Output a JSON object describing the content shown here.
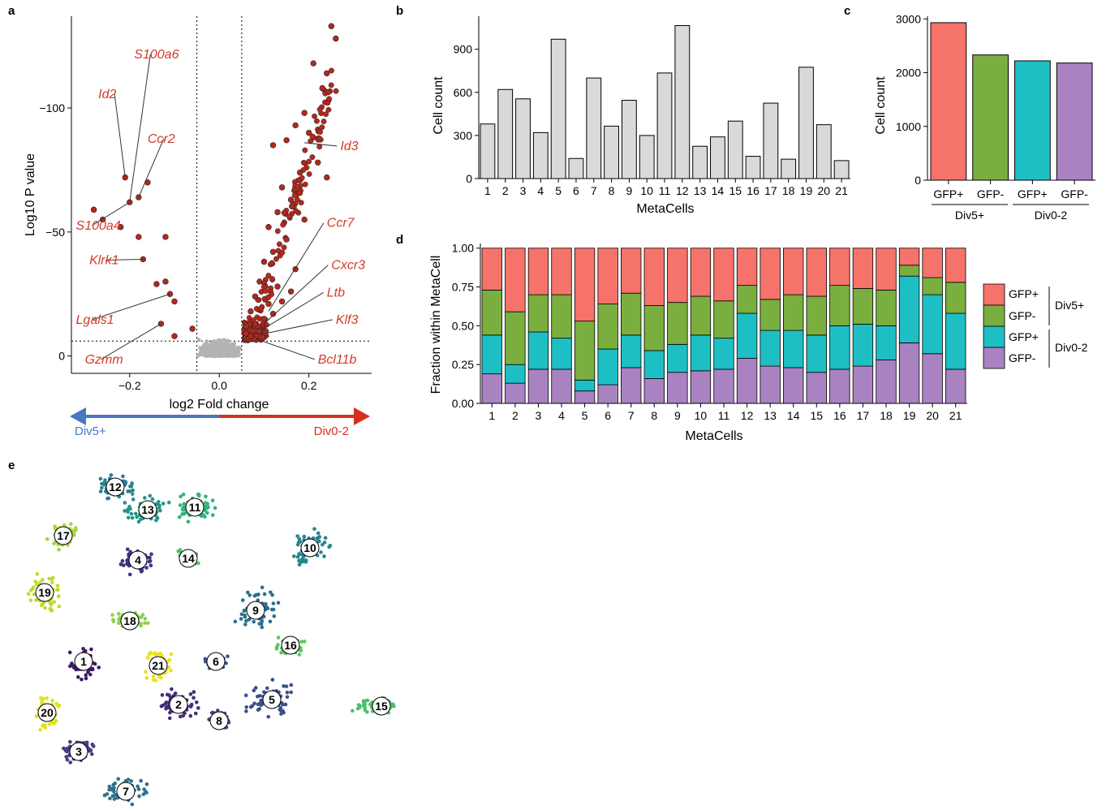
{
  "panel_letters": {
    "a": "a",
    "b": "b",
    "c": "c",
    "d": "d",
    "e": "e"
  },
  "colors": {
    "gene_label": "#d33a2a",
    "up_points": "#b5281e",
    "ns_points": "#b3b3b3",
    "bar_gray": "#d9d9d9",
    "div5_arrow": "#4a77c2",
    "div02_arrow": "#d7301f",
    "gfp_pos_div5": "#f5736b",
    "gfp_neg_div5": "#7aae3f",
    "gfp_pos_div02": "#1ebfc4",
    "gfp_neg_div02": "#a982c2"
  },
  "chart_data": [
    {
      "id": "a",
      "type": "scatter",
      "xlabel": "log2 Fold change",
      "ylabel": "Log10 P value",
      "xlim": [
        -0.33,
        0.34
      ],
      "ylim": [
        7,
        -137
      ],
      "xticks": [
        "−0.2",
        "0.0",
        "0.2"
      ],
      "xtick_values": [
        -0.2,
        0.0,
        0.2
      ],
      "yticks": [
        "−100",
        "−50",
        "0"
      ],
      "ytick_values": [
        -100,
        -50,
        0
      ],
      "thresholds": {
        "x": [
          -0.05,
          0.05
        ],
        "y": -6
      },
      "direction_arrow": {
        "left": "Div5+",
        "right": "Div0-2"
      },
      "highlighted": [
        {
          "x": 0.12,
          "y": -85
        },
        {
          "x": 0.23,
          "y": -108
        },
        {
          "x": 0.25,
          "y": -133
        },
        {
          "x": 0.26,
          "y": -128
        },
        {
          "x": 0.21,
          "y": -118
        },
        {
          "x": 0.24,
          "y": -114
        },
        {
          "x": 0.19,
          "y": -98
        },
        {
          "x": 0.17,
          "y": -93
        },
        {
          "x": 0.15,
          "y": -87
        },
        {
          "x": 0.2,
          "y": -90
        },
        {
          "x": 0.22,
          "y": -78
        },
        {
          "x": 0.24,
          "y": -72
        },
        {
          "x": 0.18,
          "y": -74
        },
        {
          "x": 0.14,
          "y": -68
        },
        {
          "x": 0.16,
          "y": -63
        },
        {
          "x": 0.13,
          "y": -58
        },
        {
          "x": 0.11,
          "y": -52
        },
        {
          "x": 0.19,
          "y": -55
        },
        {
          "x": 0.15,
          "y": -47
        },
        {
          "x": 0.12,
          "y": -42
        },
        {
          "x": 0.1,
          "y": -38
        },
        {
          "x": 0.17,
          "y": -35
        },
        {
          "x": 0.09,
          "y": -30
        },
        {
          "x": 0.13,
          "y": -28
        },
        {
          "x": 0.08,
          "y": -24
        },
        {
          "x": 0.11,
          "y": -21
        },
        {
          "x": 0.07,
          "y": -18
        },
        {
          "x": 0.1,
          "y": -15
        },
        {
          "x": 0.06,
          "y": -12
        },
        {
          "x": 0.09,
          "y": -10
        },
        {
          "x": 0.07,
          "y": -8
        },
        {
          "x": 0.08,
          "y": -13
        },
        {
          "x": 0.12,
          "y": -17
        },
        {
          "x": 0.14,
          "y": -22
        },
        {
          "x": 0.16,
          "y": -26
        },
        {
          "x": 0.06,
          "y": -9
        },
        {
          "x": -0.21,
          "y": -72
        },
        {
          "x": -0.2,
          "y": -62
        },
        {
          "x": -0.18,
          "y": -64
        },
        {
          "x": -0.16,
          "y": -70
        },
        {
          "x": -0.28,
          "y": -59
        },
        {
          "x": -0.17,
          "y": -39
        },
        {
          "x": -0.12,
          "y": -48
        },
        {
          "x": -0.18,
          "y": -48
        },
        {
          "x": -0.12,
          "y": -30
        },
        {
          "x": -0.11,
          "y": -25
        },
        {
          "x": -0.13,
          "y": -13
        },
        {
          "x": -0.14,
          "y": -29
        },
        {
          "x": -0.06,
          "y": -11
        },
        {
          "x": -0.1,
          "y": -22
        },
        {
          "x": -0.26,
          "y": -55
        },
        {
          "x": -0.22,
          "y": -52
        },
        {
          "x": -0.1,
          "y": -8
        }
      ],
      "gene_labels": [
        {
          "text": "Id2",
          "x": -0.27,
          "y": -104,
          "px": -0.21,
          "py": -72
        },
        {
          "text": "S100a6",
          "x": -0.19,
          "y": -120,
          "px": -0.2,
          "py": -62
        },
        {
          "text": "Ccr2",
          "x": -0.16,
          "y": -86,
          "px": -0.18,
          "py": -64
        },
        {
          "text": "S100a4",
          "x": -0.32,
          "y": -51,
          "px": -0.2,
          "py": -62
        },
        {
          "text": "Klrk1",
          "x": -0.29,
          "y": -37,
          "px": -0.17,
          "py": -39
        },
        {
          "text": "Lgals1",
          "x": -0.32,
          "y": -13,
          "px": -0.11,
          "py": -25
        },
        {
          "text": "Gzmm",
          "x": -0.3,
          "y": 3,
          "px": -0.13,
          "py": -13
        },
        {
          "text": "Id3",
          "x": 0.27,
          "y": -83,
          "px": 0.19,
          "py": -86
        },
        {
          "text": "Ccr7",
          "x": 0.24,
          "y": -52,
          "px": 0.11,
          "py": -18
        },
        {
          "text": "Cxcr3",
          "x": 0.25,
          "y": -35,
          "px": 0.1,
          "py": -13
        },
        {
          "text": "Ltb",
          "x": 0.24,
          "y": -24,
          "px": 0.09,
          "py": -10
        },
        {
          "text": "Klf3",
          "x": 0.26,
          "y": -13,
          "px": 0.1,
          "py": -9
        },
        {
          "text": "Bcl11b",
          "x": 0.22,
          "y": 3,
          "px": 0.08,
          "py": -7
        }
      ]
    },
    {
      "id": "b",
      "type": "bar",
      "xlabel": "MetaCells",
      "ylabel": "Cell count",
      "ylim": [
        0,
        1130
      ],
      "yticks": [
        "0",
        "300",
        "600",
        "900"
      ],
      "ytick_values": [
        0,
        300,
        600,
        900
      ],
      "categories": [
        "1",
        "2",
        "3",
        "4",
        "5",
        "6",
        "7",
        "8",
        "9",
        "10",
        "11",
        "12",
        "13",
        "14",
        "15",
        "16",
        "17",
        "18",
        "19",
        "20",
        "21"
      ],
      "values": [
        380,
        620,
        555,
        320,
        970,
        140,
        700,
        365,
        545,
        300,
        735,
        1065,
        225,
        290,
        400,
        155,
        525,
        135,
        775,
        375,
        125
      ]
    },
    {
      "id": "c",
      "type": "bar",
      "ylabel": "Cell count",
      "ylim": [
        0,
        3050
      ],
      "yticks": [
        "0",
        "1000",
        "2000",
        "3000"
      ],
      "ytick_values": [
        0,
        1000,
        2000,
        3000
      ],
      "categories": [
        "GFP+",
        "GFP-",
        "GFP+",
        "GFP-"
      ],
      "groups": [
        "Div5+",
        "Div0-2"
      ],
      "values": [
        2930,
        2330,
        2220,
        2180
      ]
    },
    {
      "id": "d",
      "type": "bar",
      "stacked": true,
      "xlabel": "MetaCells",
      "ylabel": "Fraction within MetaCell",
      "ylim": [
        0,
        1.03
      ],
      "yticks": [
        "0.00",
        "0.25",
        "0.50",
        "0.75",
        "1.00"
      ],
      "ytick_values": [
        0,
        0.25,
        0.5,
        0.75,
        1.0
      ],
      "categories": [
        "1",
        "2",
        "3",
        "4",
        "5",
        "6",
        "7",
        "8",
        "9",
        "10",
        "11",
        "12",
        "13",
        "14",
        "15",
        "16",
        "17",
        "18",
        "19",
        "20",
        "21"
      ],
      "legend": {
        "groups": [
          {
            "name": "Div5+",
            "entries": [
              "GFP+",
              "GFP-"
            ]
          },
          {
            "name": "Div0-2",
            "entries": [
              "GFP+",
              "GFP-"
            ]
          }
        ]
      },
      "series": [
        {
          "values": [
            0.19,
            0.13,
            0.22,
            0.22,
            0.08,
            0.12,
            0.23,
            0.16,
            0.2,
            0.21,
            0.22,
            0.29,
            0.24,
            0.23,
            0.2,
            0.22,
            0.24,
            0.28,
            0.39,
            0.32,
            0.22
          ]
        },
        {
          "values": [
            0.25,
            0.12,
            0.24,
            0.2,
            0.07,
            0.23,
            0.21,
            0.18,
            0.18,
            0.23,
            0.2,
            0.29,
            0.23,
            0.24,
            0.24,
            0.28,
            0.27,
            0.22,
            0.43,
            0.38,
            0.36
          ]
        },
        {
          "values": [
            0.29,
            0.34,
            0.24,
            0.28,
            0.38,
            0.29,
            0.27,
            0.29,
            0.27,
            0.25,
            0.24,
            0.18,
            0.2,
            0.23,
            0.25,
            0.26,
            0.23,
            0.23,
            0.07,
            0.11,
            0.2
          ]
        },
        {
          "values": [
            0.27,
            0.41,
            0.3,
            0.3,
            0.47,
            0.36,
            0.29,
            0.37,
            0.35,
            0.31,
            0.34,
            0.24,
            0.33,
            0.3,
            0.31,
            0.24,
            0.26,
            0.27,
            0.11,
            0.19,
            0.22
          ]
        }
      ]
    },
    {
      "id": "e",
      "type": "scatter",
      "clusters": [
        {
          "label": "12"
        },
        {
          "label": "13"
        },
        {
          "label": "11"
        },
        {
          "label": "17"
        },
        {
          "label": "4"
        },
        {
          "label": "14"
        },
        {
          "label": "10"
        },
        {
          "label": "19"
        },
        {
          "label": "9"
        },
        {
          "label": "18"
        },
        {
          "label": "16"
        },
        {
          "label": "1"
        },
        {
          "label": "21"
        },
        {
          "label": "6"
        },
        {
          "label": "5"
        },
        {
          "label": "15"
        },
        {
          "label": "20"
        },
        {
          "label": "2"
        },
        {
          "label": "8"
        },
        {
          "label": "3"
        },
        {
          "label": "7"
        }
      ]
    }
  ]
}
